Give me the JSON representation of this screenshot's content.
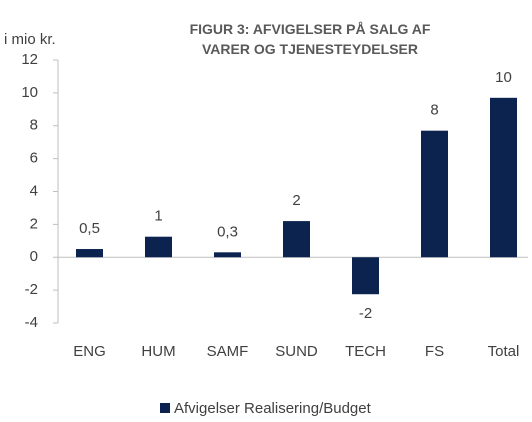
{
  "chart_data": {
    "type": "bar",
    "title": "FIGUR 3: AFVIGELSER PÅ SALG AF VARER OG TJENESTEYDELSER",
    "y_label": "i mio kr.",
    "categories": [
      "ENG",
      "HUM",
      "SAMF",
      "SUND",
      "TECH",
      "FS",
      "Total"
    ],
    "series": [
      {
        "name": "Afvigelser Realisering/Budget",
        "color": "#0c2350",
        "values": [
          0.5,
          1.25,
          0.3,
          2.2,
          -2.25,
          7.7,
          9.7
        ],
        "value_labels": [
          "0,5",
          "1",
          "0,3",
          "2",
          "-2",
          "8",
          "10"
        ]
      }
    ],
    "ylim": [
      -4,
      12
    ],
    "yticks": [
      -4,
      -2,
      0,
      2,
      4,
      6,
      8,
      10,
      12
    ],
    "grid": false,
    "legend": "bottom"
  }
}
